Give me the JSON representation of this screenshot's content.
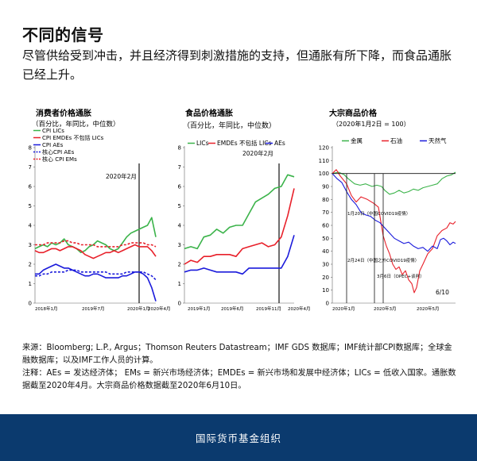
{
  "header": {
    "title": "不同的信号",
    "subtitle": "尽管供给受到冲击，并且经济得到刺激措施的支持，但通胀有所下降，而食品通胀已经上升。"
  },
  "notes": {
    "source": "来源：Bloomberg; L.P., Argus；Thomson Reuters Datastream；IMF GDS 数据库；IMF统计部CPI数据库；全球金融数据库；以及IMF工作人员的计算。",
    "note": "注释：AEs = 发达经济体； EMs = 新兴市场经济体；EMDEs = 新兴市场和发展中经济体；LICs = 低收入国家。通胀数据截至2020年4月。大宗商品价格数据截至2020年6月10日。"
  },
  "footer": {
    "label": "国际货币基金组织"
  },
  "colors": {
    "green": "#3bb34a",
    "red": "#e8202a",
    "blue": "#1a1adb",
    "footer": "#0b3a6e"
  },
  "chart_data": [
    {
      "type": "line",
      "title": "消费者价格通胀",
      "subtitle": "（百分比，年同比，中位数）",
      "ylim": [
        0,
        8
      ],
      "yticks": [
        0,
        1,
        2,
        3,
        4,
        5,
        6,
        7,
        8
      ],
      "xticks": [
        "2018年1月",
        "2019年7月",
        "2020年1月",
        "2020年4月"
      ],
      "vline_label": "2020年2月",
      "legend": [
        {
          "name": "CPI LICs",
          "color": "#3bb34a",
          "dash": false
        },
        {
          "name": "CPI EMDEs 不包括 LICs",
          "color": "#e8202a",
          "dash": false
        },
        {
          "name": "CPI AEs",
          "color": "#1a1adb",
          "dash": false
        },
        {
          "name": "核心CPI AEs",
          "color": "#1a1adb",
          "dash": true
        },
        {
          "name": "核心 CPI EMs",
          "color": "#e8202a",
          "dash": true
        }
      ],
      "series": [
        {
          "name": "CPI LICs",
          "color": "#3bb34a",
          "dash": false,
          "values": [
            2.8,
            2.9,
            3.0,
            2.9,
            3.1,
            3.0,
            3.1,
            3.3,
            3.0,
            2.9,
            2.8,
            2.6,
            2.7,
            2.9,
            3.0,
            3.2,
            3.1,
            3.0,
            2.8,
            2.7,
            2.8,
            3.1,
            3.4,
            3.6,
            3.7,
            3.8,
            3.9,
            4.0,
            4.4,
            3.4
          ]
        },
        {
          "name": "CPI EMDEs 不包括 LICs",
          "color": "#e8202a",
          "dash": false,
          "values": [
            2.7,
            2.6,
            2.6,
            2.7,
            2.8,
            2.8,
            2.7,
            2.8,
            2.9,
            2.9,
            2.8,
            2.7,
            2.5,
            2.4,
            2.3,
            2.4,
            2.5,
            2.6,
            2.6,
            2.7,
            2.6,
            2.7,
            2.8,
            2.9,
            3.0,
            2.9,
            2.9,
            2.9,
            2.7,
            2.4
          ]
        },
        {
          "name": "CPI AEs",
          "color": "#1a1adb",
          "dash": false,
          "values": [
            1.5,
            1.5,
            1.7,
            1.8,
            1.9,
            2.0,
            1.9,
            1.8,
            1.8,
            1.7,
            1.6,
            1.5,
            1.4,
            1.4,
            1.5,
            1.5,
            1.4,
            1.3,
            1.3,
            1.3,
            1.3,
            1.4,
            1.4,
            1.5,
            1.6,
            1.6,
            1.5,
            1.3,
            0.8,
            0.1
          ]
        },
        {
          "name": "核心CPI AEs",
          "color": "#1a1adb",
          "dash": true,
          "values": [
            1.4,
            1.4,
            1.5,
            1.5,
            1.6,
            1.6,
            1.6,
            1.6,
            1.7,
            1.7,
            1.7,
            1.6,
            1.6,
            1.6,
            1.6,
            1.6,
            1.6,
            1.6,
            1.5,
            1.5,
            1.5,
            1.5,
            1.6,
            1.6,
            1.6,
            1.6,
            1.6,
            1.5,
            1.4,
            1.2
          ]
        },
        {
          "name": "核心 CPI EMs",
          "color": "#e8202a",
          "dash": true,
          "values": [
            3.0,
            3.0,
            3.0,
            3.1,
            3.1,
            3.1,
            3.1,
            3.2,
            3.2,
            3.1,
            3.1,
            3.0,
            3.0,
            3.0,
            3.0,
            2.9,
            2.9,
            2.9,
            2.9,
            2.9,
            2.9,
            3.0,
            3.0,
            3.1,
            3.1,
            3.1,
            3.1,
            3.0,
            3.0,
            2.9
          ]
        }
      ]
    },
    {
      "type": "line",
      "title": "食品价格通胀",
      "subtitle": "（百分比，年同比，中位数）",
      "ylim": [
        0,
        8
      ],
      "yticks": [
        0,
        1,
        2,
        3,
        4,
        5,
        6,
        7,
        8
      ],
      "xticks": [
        "2019年1月",
        "2019年6月",
        "2019年11月",
        "2020年4月"
      ],
      "vline_label": "2020年2月",
      "legend": [
        {
          "name": "LICs",
          "color": "#3bb34a",
          "dash": false
        },
        {
          "name": "EMDEs 不包括 LICs",
          "color": "#e8202a",
          "dash": false
        },
        {
          "name": "AEs",
          "color": "#1a1adb",
          "dash": false
        }
      ],
      "series": [
        {
          "name": "LICs",
          "color": "#3bb34a",
          "dash": false,
          "values": [
            2.8,
            2.9,
            2.8,
            3.4,
            3.5,
            3.8,
            3.6,
            3.9,
            4.0,
            4.0,
            4.6,
            5.2,
            5.4,
            5.6,
            5.9,
            6.0,
            6.6,
            6.5
          ]
        },
        {
          "name": "EMDEs 不包括 LICs",
          "color": "#e8202a",
          "dash": false,
          "values": [
            2.0,
            2.2,
            2.1,
            2.4,
            2.4,
            2.5,
            2.5,
            2.5,
            2.4,
            2.8,
            2.9,
            3.0,
            3.1,
            2.9,
            3.0,
            3.4,
            4.5,
            5.9
          ]
        },
        {
          "name": "AEs",
          "color": "#1a1adb",
          "dash": false,
          "values": [
            1.6,
            1.7,
            1.7,
            1.8,
            1.7,
            1.6,
            1.6,
            1.6,
            1.6,
            1.5,
            1.8,
            1.8,
            1.8,
            1.8,
            1.8,
            1.8,
            2.4,
            3.5
          ]
        }
      ]
    },
    {
      "type": "line",
      "title": "大宗商品价格",
      "subtitle": "（2020年1月2日 = 100）",
      "ylim": [
        0,
        120
      ],
      "yticks": [
        0,
        10,
        20,
        30,
        40,
        50,
        60,
        70,
        80,
        90,
        100,
        110,
        120
      ],
      "xticks": [
        "2020年1月",
        "2020年3月",
        "2020年5月"
      ],
      "end_label": "6/10",
      "legend": [
        {
          "name": "金属",
          "color": "#3bb34a"
        },
        {
          "name": "石油",
          "color": "#e8202a"
        },
        {
          "name": "天然气",
          "color": "#1a1adb"
        }
      ],
      "annotations": [
        {
          "text": "1月20日（中国COVID19疫情）",
          "x": 18,
          "y": 100
        },
        {
          "text": "2月24日（中国之外COVID19疫情）",
          "x": 53,
          "y": 100
        },
        {
          "text": "3月6日（OPEC+谈判）",
          "x": 64,
          "y": 100
        }
      ],
      "series": [
        {
          "name": "金属",
          "color": "#3bb34a",
          "points": [
            [
              0,
              100
            ],
            [
              8,
              101
            ],
            [
              15,
              99
            ],
            [
              20,
              96
            ],
            [
              28,
              92
            ],
            [
              35,
              91
            ],
            [
              42,
              92
            ],
            [
              50,
              90
            ],
            [
              56,
              91
            ],
            [
              62,
              90
            ],
            [
              66,
              87
            ],
            [
              72,
              84
            ],
            [
              78,
              85
            ],
            [
              84,
              87
            ],
            [
              90,
              85
            ],
            [
              96,
              86
            ],
            [
              102,
              88
            ],
            [
              108,
              87
            ],
            [
              114,
              89
            ],
            [
              120,
              90
            ],
            [
              126,
              91
            ],
            [
              132,
              92
            ],
            [
              138,
              96
            ],
            [
              144,
              98
            ],
            [
              150,
              99
            ],
            [
              155,
              101
            ]
          ]
        },
        {
          "name": "石油",
          "color": "#e8202a",
          "points": [
            [
              0,
              100
            ],
            [
              5,
              103
            ],
            [
              10,
              98
            ],
            [
              18,
              92
            ],
            [
              24,
              83
            ],
            [
              30,
              78
            ],
            [
              36,
              82
            ],
            [
              44,
              80
            ],
            [
              52,
              77
            ],
            [
              58,
              74
            ],
            [
              64,
              52
            ],
            [
              68,
              44
            ],
            [
              72,
              38
            ],
            [
              76,
              30
            ],
            [
              80,
              26
            ],
            [
              84,
              28
            ],
            [
              88,
              22
            ],
            [
              92,
              25
            ],
            [
              96,
              18
            ],
            [
              100,
              15
            ],
            [
              103,
              8
            ],
            [
              106,
              12
            ],
            [
              110,
              25
            ],
            [
              114,
              30
            ],
            [
              120,
              38
            ],
            [
              126,
              42
            ],
            [
              132,
              52
            ],
            [
              138,
              56
            ],
            [
              144,
              58
            ],
            [
              148,
              62
            ],
            [
              152,
              61
            ],
            [
              155,
              63
            ]
          ]
        },
        {
          "name": "天然气",
          "color": "#1a1adb",
          "points": [
            [
              0,
              100
            ],
            [
              6,
              96
            ],
            [
              12,
              93
            ],
            [
              18,
              86
            ],
            [
              24,
              80
            ],
            [
              30,
              76
            ],
            [
              36,
              70
            ],
            [
              42,
              68
            ],
            [
              48,
              67
            ],
            [
              54,
              64
            ],
            [
              60,
              62
            ],
            [
              66,
              58
            ],
            [
              72,
              54
            ],
            [
              78,
              50
            ],
            [
              84,
              48
            ],
            [
              90,
              46
            ],
            [
              96,
              47
            ],
            [
              102,
              44
            ],
            [
              108,
              42
            ],
            [
              114,
              43
            ],
            [
              120,
              40
            ],
            [
              126,
              44
            ],
            [
              132,
              42
            ],
            [
              136,
              49
            ],
            [
              140,
              50
            ],
            [
              144,
              48
            ],
            [
              148,
              45
            ],
            [
              152,
              47
            ],
            [
              155,
              46
            ]
          ]
        }
      ]
    }
  ]
}
